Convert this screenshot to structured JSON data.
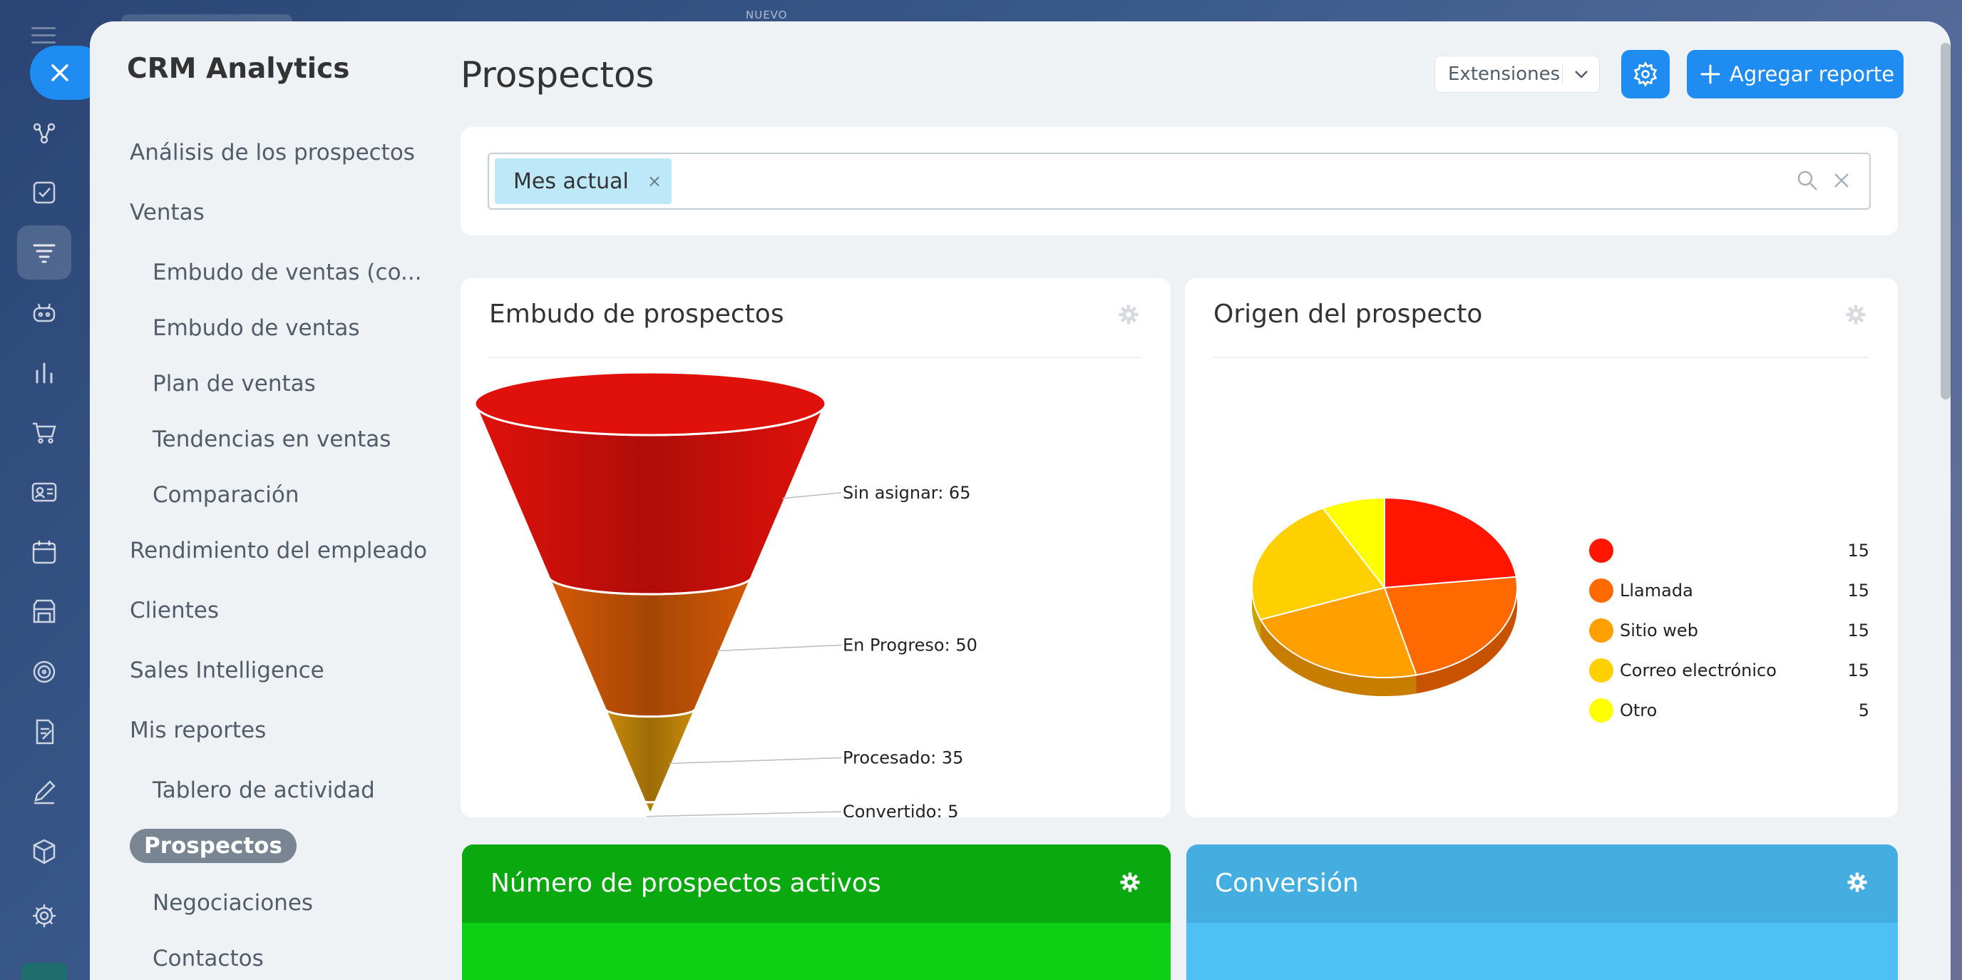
{
  "app": {
    "title": "CRM Analytics",
    "top_strip_label": "NUEVO"
  },
  "sidebar": {
    "items": [
      {
        "label": "Análisis de los prospectos"
      },
      {
        "label": "Ventas"
      },
      {
        "label": "Embudo de ventas (co..."
      },
      {
        "label": "Embudo de ventas"
      },
      {
        "label": "Plan de ventas"
      },
      {
        "label": "Tendencias en ventas"
      },
      {
        "label": "Comparación"
      },
      {
        "label": "Rendimiento del empleado"
      },
      {
        "label": "Clientes"
      },
      {
        "label": "Sales Intelligence"
      },
      {
        "label": "Mis reportes"
      },
      {
        "label": "Tablero de actividad"
      },
      {
        "label": "Prospectos"
      },
      {
        "label": "Negociaciones"
      },
      {
        "label": "Contactos"
      }
    ]
  },
  "rail": {
    "icons": [
      "menu-icon",
      "close-icon",
      "flow-icon",
      "task-check-icon",
      "funnel-icon",
      "robot-icon",
      "analytics-icon",
      "cart-icon",
      "contact-card-icon",
      "calendar-icon",
      "store-icon",
      "target-icon",
      "document-sign-icon",
      "pen-icon",
      "box-icon",
      "settings-icon"
    ]
  },
  "header": {
    "page_title": "Prospectos",
    "extensions_label": "Extensiones",
    "add_report_label": "Agregar reporte"
  },
  "filter": {
    "chip_label": "Mes actual",
    "chip_remove": "×"
  },
  "cards": {
    "funnel_title": "Embudo de prospectos",
    "source_title": "Origen del prospecto",
    "active_title": "Número de prospectos activos",
    "conversion_title": "Conversión"
  },
  "chart_data": [
    {
      "type": "funnel",
      "title": "Embudo de prospectos",
      "stages": [
        {
          "name": "Sin asignar",
          "value": 65,
          "color": "#e0110b",
          "label": "Sin asignar: 65"
        },
        {
          "name": "En Progreso",
          "value": 50,
          "color": "#d45a06",
          "label": "En Progreso: 50"
        },
        {
          "name": "Procesado",
          "value": 35,
          "color": "#c98a0a",
          "label": "Procesado: 35"
        },
        {
          "name": "Convertido",
          "value": 5,
          "color": "#d9a000",
          "label": "Convertido: 5"
        }
      ]
    },
    {
      "type": "pie",
      "title": "Origen del prospecto",
      "slices": [
        {
          "name": "",
          "value": 15,
          "color": "#ff1500"
        },
        {
          "name": "Llamada",
          "value": 15,
          "color": "#ff6a00"
        },
        {
          "name": "Sitio web",
          "value": 15,
          "color": "#ffa000"
        },
        {
          "name": "Correo electrónico",
          "value": 15,
          "color": "#ffd000"
        },
        {
          "name": "Otro",
          "value": 5,
          "color": "#ffff00"
        }
      ],
      "legend_position": "right"
    }
  ],
  "colors": {
    "accent": "#1f8cf2",
    "green": "#0aa90f",
    "blue": "#45aee0"
  }
}
